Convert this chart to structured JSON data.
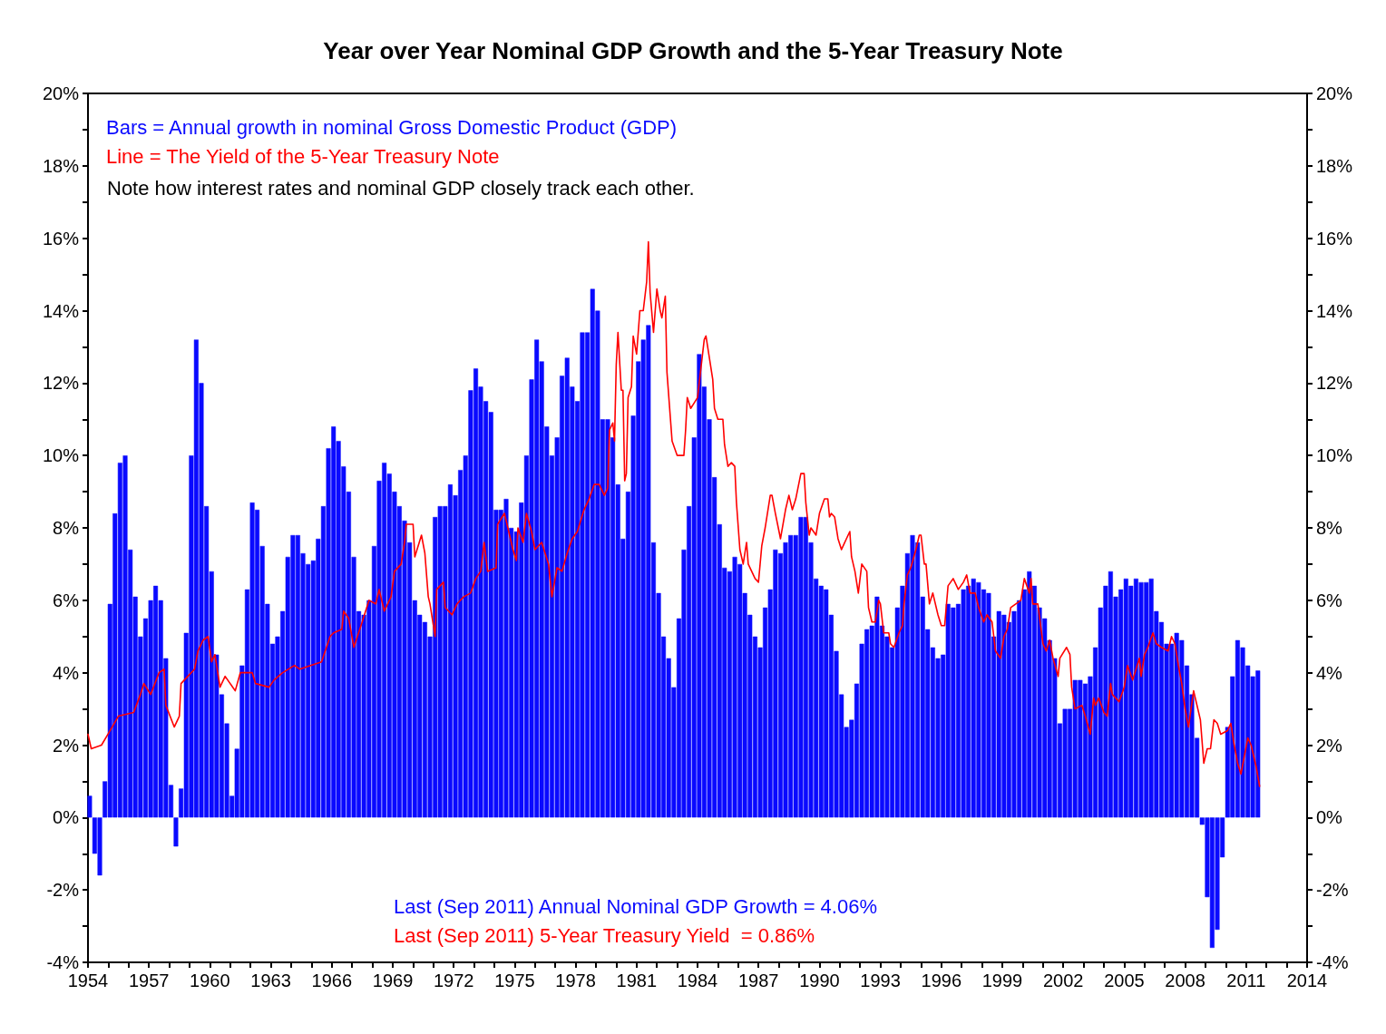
{
  "chart_data": {
    "type": "bar",
    "title": "Year over Year Nominal GDP Growth and the 5-Year Treasury Note",
    "annotations": [
      "Note how interest rates and nominal GDP closely track each other.",
      "Last (Sep 2011) Annual Nominal GDP Growth = 4.06%",
      "Last (Sep 2011) 5-Year Treasury Yield  = 0.86%"
    ],
    "legend": "top left",
    "xlim": [
      "1954",
      "2014"
    ],
    "xticks": [
      {
        "value": "1954",
        "label": "1954"
      },
      {
        "value": "1955",
        "label": null
      },
      {
        "value": "1956",
        "label": null
      },
      {
        "value": "1957",
        "label": "1957"
      },
      {
        "value": "1958",
        "label": null
      },
      {
        "value": "1959",
        "label": null
      },
      {
        "value": "1960",
        "label": "1960"
      },
      {
        "value": "1961",
        "label": null
      },
      {
        "value": "1962",
        "label": null
      },
      {
        "value": "1963",
        "label": "1963"
      },
      {
        "value": "1964",
        "label": null
      },
      {
        "value": "1965",
        "label": null
      },
      {
        "value": "1966",
        "label": "1966"
      },
      {
        "value": "1967",
        "label": null
      },
      {
        "value": "1968",
        "label": null
      },
      {
        "value": "1969",
        "label": "1969"
      },
      {
        "value": "1970",
        "label": null
      },
      {
        "value": "1971",
        "label": null
      },
      {
        "value": "1972",
        "label": "1972"
      },
      {
        "value": "1973",
        "label": null
      },
      {
        "value": "1974",
        "label": null
      },
      {
        "value": "1975",
        "label": "1975"
      },
      {
        "value": "1976",
        "label": null
      },
      {
        "value": "1977",
        "label": null
      },
      {
        "value": "1978",
        "label": "1978"
      },
      {
        "value": "1979",
        "label": null
      },
      {
        "value": "1980",
        "label": null
      },
      {
        "value": "1981",
        "label": "1981"
      },
      {
        "value": "1982",
        "label": null
      },
      {
        "value": "1983",
        "label": null
      },
      {
        "value": "1984",
        "label": "1984"
      },
      {
        "value": "1985",
        "label": null
      },
      {
        "value": "1986",
        "label": null
      },
      {
        "value": "1987",
        "label": "1987"
      },
      {
        "value": "1988",
        "label": null
      },
      {
        "value": "1989",
        "label": null
      },
      {
        "value": "1990",
        "label": "1990"
      },
      {
        "value": "1991",
        "label": null
      },
      {
        "value": "1992",
        "label": null
      },
      {
        "value": "1993",
        "label": "1993"
      },
      {
        "value": "1994",
        "label": null
      },
      {
        "value": "1995",
        "label": null
      },
      {
        "value": "1996",
        "label": "1996"
      },
      {
        "value": "1997",
        "label": null
      },
      {
        "value": "1998",
        "label": null
      },
      {
        "value": "1999",
        "label": "1999"
      },
      {
        "value": "2000",
        "label": null
      },
      {
        "value": "2001",
        "label": null
      },
      {
        "value": "2002",
        "label": "2002"
      },
      {
        "value": "2003",
        "label": null
      },
      {
        "value": "2004",
        "label": null
      },
      {
        "value": "2005",
        "label": "2005"
      },
      {
        "value": "2006",
        "label": null
      },
      {
        "value": "2007",
        "label": null
      },
      {
        "value": "2008",
        "label": "2008"
      },
      {
        "value": "2009",
        "label": null
      },
      {
        "value": "2010",
        "label": null
      },
      {
        "value": "2011",
        "label": "2011"
      },
      {
        "value": "2012",
        "label": null
      },
      {
        "value": "2013",
        "label": null
      },
      {
        "value": "2014",
        "label": "2014"
      }
    ],
    "ylim": [
      -4,
      20
    ],
    "yticks": [
      {
        "value": -4,
        "label": "-4%"
      },
      {
        "value": -3,
        "label": null
      },
      {
        "value": -2,
        "label": "-2%"
      },
      {
        "value": -1,
        "label": null
      },
      {
        "value": 0,
        "label": "0%"
      },
      {
        "value": 1,
        "label": null
      },
      {
        "value": 2,
        "label": "2%"
      },
      {
        "value": 3,
        "label": null
      },
      {
        "value": 4,
        "label": "4%"
      },
      {
        "value": 5,
        "label": null
      },
      {
        "value": 6,
        "label": "6%"
      },
      {
        "value": 7,
        "label": null
      },
      {
        "value": 8,
        "label": "8%"
      },
      {
        "value": 9,
        "label": null
      },
      {
        "value": 10,
        "label": "10%"
      },
      {
        "value": 11,
        "label": null
      },
      {
        "value": 12,
        "label": "12%"
      },
      {
        "value": 13,
        "label": null
      },
      {
        "value": 14,
        "label": "14%"
      },
      {
        "value": 15,
        "label": null
      },
      {
        "value": 16,
        "label": "16%"
      },
      {
        "value": 17,
        "label": null
      },
      {
        "value": 18,
        "label": "18%"
      },
      {
        "value": 19,
        "label": null
      },
      {
        "value": 20,
        "label": "20%"
      }
    ],
    "y2lim": [
      -4,
      20
    ],
    "y2ticks": [
      {
        "value": -4,
        "label": "-4%"
      },
      {
        "value": -3,
        "label": null
      },
      {
        "value": -2,
        "label": "-2%"
      },
      {
        "value": -1,
        "label": null
      },
      {
        "value": 0,
        "label": "0%"
      },
      {
        "value": 1,
        "label": null
      },
      {
        "value": 2,
        "label": "2%"
      },
      {
        "value": 3,
        "label": null
      },
      {
        "value": 4,
        "label": "4%"
      },
      {
        "value": 5,
        "label": null
      },
      {
        "value": 6,
        "label": "6%"
      },
      {
        "value": 7,
        "label": null
      },
      {
        "value": 8,
        "label": "8%"
      },
      {
        "value": 9,
        "label": null
      },
      {
        "value": 10,
        "label": "10%"
      },
      {
        "value": 11,
        "label": null
      },
      {
        "value": 12,
        "label": "12%"
      },
      {
        "value": 13,
        "label": null
      },
      {
        "value": 14,
        "label": "14%"
      },
      {
        "value": 15,
        "label": null
      },
      {
        "value": 16,
        "label": "16%"
      },
      {
        "value": 17,
        "label": null
      },
      {
        "value": 18,
        "label": "18%"
      },
      {
        "value": 19,
        "label": null
      },
      {
        "value": 20,
        "label": "20%"
      }
    ],
    "series": [
      {
        "name": "Bars = Annual growth in nominal Gross Domestic Product (GDP)",
        "color": "#0a0aff",
        "x": [
          "1954-02",
          "1954-05",
          "1954-08",
          "1954-11",
          "1955-02",
          "1955-05",
          "1955-08",
          "1955-11",
          "1956-02",
          "1956-05",
          "1956-08",
          "1956-11",
          "1957-02",
          "1957-05",
          "1957-08",
          "1957-11",
          "1958-02",
          "1958-05",
          "1958-08",
          "1958-11",
          "1959-02",
          "1959-05",
          "1959-08",
          "1959-11",
          "1960-02",
          "1960-05",
          "1960-08",
          "1960-11",
          "1961-02",
          "1961-05",
          "1961-08",
          "1961-11",
          "1962-02",
          "1962-05",
          "1962-08",
          "1962-11",
          "1963-02",
          "1963-05",
          "1963-08",
          "1963-11",
          "1964-02",
          "1964-05",
          "1964-08",
          "1964-11",
          "1965-02",
          "1965-05",
          "1965-08",
          "1965-11",
          "1966-02",
          "1966-05",
          "1966-08",
          "1966-11",
          "1967-02",
          "1967-05",
          "1967-08",
          "1967-11",
          "1968-02",
          "1968-05",
          "1968-08",
          "1968-11",
          "1969-02",
          "1969-05",
          "1969-08",
          "1969-11",
          "1970-02",
          "1970-05",
          "1970-08",
          "1970-11",
          "1971-02",
          "1971-05",
          "1971-08",
          "1971-11",
          "1972-02",
          "1972-05",
          "1972-08",
          "1972-11",
          "1973-02",
          "1973-05",
          "1973-08",
          "1973-11",
          "1974-02",
          "1974-05",
          "1974-08",
          "1974-11",
          "1975-02",
          "1975-05",
          "1975-08",
          "1975-11",
          "1976-02",
          "1976-05",
          "1976-08",
          "1976-11",
          "1977-02",
          "1977-05",
          "1977-08",
          "1977-11",
          "1978-02",
          "1978-05",
          "1978-08",
          "1978-11",
          "1979-02",
          "1979-05",
          "1979-08",
          "1979-11",
          "1980-02",
          "1980-05",
          "1980-08",
          "1980-11",
          "1981-02",
          "1981-05",
          "1981-08",
          "1981-11",
          "1982-02",
          "1982-05",
          "1982-08",
          "1982-11",
          "1983-02",
          "1983-05",
          "1983-08",
          "1983-11",
          "1984-02",
          "1984-05",
          "1984-08",
          "1984-11",
          "1985-02",
          "1985-05",
          "1985-08",
          "1985-11",
          "1986-02",
          "1986-05",
          "1986-08",
          "1986-11",
          "1987-02",
          "1987-05",
          "1987-08",
          "1987-11",
          "1988-02",
          "1988-05",
          "1988-08",
          "1988-11",
          "1989-02",
          "1989-05",
          "1989-08",
          "1989-11",
          "1990-02",
          "1990-05",
          "1990-08",
          "1990-11",
          "1991-02",
          "1991-05",
          "1991-08",
          "1991-11",
          "1992-02",
          "1992-05",
          "1992-08",
          "1992-11",
          "1993-02",
          "1993-05",
          "1993-08",
          "1993-11",
          "1994-02",
          "1994-05",
          "1994-08",
          "1994-11",
          "1995-02",
          "1995-05",
          "1995-08",
          "1995-11",
          "1996-02",
          "1996-05",
          "1996-08",
          "1996-11",
          "1997-02",
          "1997-05",
          "1997-08",
          "1997-11",
          "1998-02",
          "1998-05",
          "1998-08",
          "1998-11",
          "1999-02",
          "1999-05",
          "1999-08",
          "1999-11",
          "2000-02",
          "2000-05",
          "2000-08",
          "2000-11",
          "2001-02",
          "2001-05",
          "2001-08",
          "2001-11",
          "2002-02",
          "2002-05",
          "2002-08",
          "2002-11",
          "2003-02",
          "2003-05",
          "2003-08",
          "2003-11",
          "2004-02",
          "2004-05",
          "2004-08",
          "2004-11",
          "2005-02",
          "2005-05",
          "2005-08",
          "2005-11",
          "2006-02",
          "2006-05",
          "2006-08",
          "2006-11",
          "2007-02",
          "2007-05",
          "2007-08",
          "2007-11",
          "2008-02",
          "2008-05",
          "2008-08",
          "2008-11",
          "2009-02",
          "2009-05",
          "2009-08",
          "2009-11",
          "2010-02",
          "2010-05",
          "2010-08",
          "2010-11",
          "2011-02",
          "2011-05",
          "2011-08"
        ],
        "values": [
          0.6,
          -1.0,
          -1.6,
          1.0,
          5.9,
          8.4,
          9.8,
          10.0,
          7.4,
          6.1,
          5.0,
          5.5,
          6.0,
          6.4,
          6.0,
          4.4,
          0.9,
          -0.8,
          0.8,
          5.1,
          10.0,
          13.2,
          12.0,
          8.6,
          6.8,
          4.5,
          3.4,
          2.6,
          0.6,
          1.9,
          4.2,
          6.3,
          8.7,
          8.5,
          7.5,
          5.9,
          4.8,
          5.0,
          5.7,
          7.2,
          7.8,
          7.8,
          7.3,
          7.0,
          7.1,
          7.7,
          8.6,
          10.2,
          10.8,
          10.4,
          9.7,
          9.0,
          7.2,
          5.7,
          5.6,
          6.0,
          7.5,
          9.3,
          9.8,
          9.5,
          9.0,
          8.6,
          8.2,
          7.6,
          6.0,
          5.6,
          5.4,
          5.0,
          8.3,
          8.6,
          8.6,
          9.2,
          8.9,
          9.6,
          10.0,
          11.8,
          12.4,
          11.9,
          11.5,
          11.2,
          8.5,
          8.5,
          8.8,
          8.0,
          7.9,
          8.7,
          10.0,
          12.1,
          13.2,
          12.6,
          10.8,
          10.0,
          10.5,
          12.2,
          12.7,
          11.9,
          11.5,
          13.4,
          13.4,
          14.6,
          14.0,
          11.0,
          11.0,
          10.5,
          9.2,
          7.7,
          9.0,
          11.1,
          12.6,
          13.2,
          13.6,
          7.6,
          6.2,
          5.0,
          4.4,
          3.6,
          5.5,
          7.4,
          8.6,
          10.5,
          12.8,
          11.9,
          11.0,
          9.4,
          8.1,
          6.9,
          6.8,
          7.2,
          7.0,
          6.2,
          5.6,
          5.0,
          4.7,
          5.8,
          6.3,
          7.4,
          7.3,
          7.6,
          7.8,
          7.8,
          8.3,
          8.3,
          7.6,
          6.6,
          6.4,
          6.3,
          5.6,
          4.6,
          3.4,
          2.5,
          2.7,
          3.7,
          4.8,
          5.2,
          5.3,
          6.1,
          5.3,
          5.0,
          4.7,
          5.8,
          6.4,
          7.3,
          7.8,
          7.6,
          6.1,
          5.2,
          4.7,
          4.4,
          4.5,
          5.9,
          5.8,
          5.9,
          6.3,
          6.4,
          6.6,
          6.5,
          6.3,
          6.2,
          5.0,
          5.7,
          5.6,
          5.4,
          5.7,
          6.0,
          6.3,
          6.8,
          6.4,
          5.8,
          5.5,
          4.9,
          4.4,
          2.6,
          3.0,
          3.0,
          3.8,
          3.8,
          3.7,
          3.9,
          4.7,
          5.8,
          6.4,
          6.8,
          6.1,
          6.3,
          6.6,
          6.4,
          6.6,
          6.5,
          6.5,
          6.6,
          5.7,
          5.4,
          4.8,
          4.8,
          5.1,
          4.9,
          4.2,
          3.4,
          2.2,
          -0.2,
          -2.2,
          -3.6,
          -3.1,
          -1.1,
          2.5,
          3.9,
          4.9,
          4.7,
          4.2,
          3.9,
          4.06
        ]
      },
      {
        "type": "line",
        "name": "Line = The Yield of the 5-Year Treasury Note",
        "color": "#ff0000",
        "x": [
          "1954-01",
          "1954-03",
          "1954-09",
          "1955-02",
          "1955-07",
          "1956-04",
          "1956-08",
          "1956-10",
          "1957-02",
          "1957-07",
          "1957-10",
          "1957-11",
          "1958-04",
          "1958-07",
          "1958-08",
          "1958-12",
          "1959-04",
          "1959-06",
          "1959-09",
          "1959-12",
          "1960-02",
          "1960-04",
          "1960-07",
          "1960-10",
          "1961-04",
          "1961-07",
          "1962-02",
          "1962-04",
          "1962-12",
          "1963-03",
          "1963-08",
          "1964-03",
          "1964-06",
          "1965-07",
          "1965-12",
          "1966-02",
          "1966-07",
          "1966-08",
          "1966-11",
          "1967-02",
          "1967-07",
          "1967-11",
          "1968-03",
          "1968-05",
          "1968-08",
          "1968-12",
          "1969-02",
          "1969-06",
          "1969-08",
          "1969-09",
          "1970-01",
          "1970-02",
          "1970-06",
          "1970-08",
          "1970-10",
          "1970-11",
          "1971-02",
          "1971-03",
          "1971-07",
          "1971-08",
          "1971-12",
          "1972-03",
          "1972-07",
          "1972-11",
          "1973-02",
          "1973-05",
          "1973-07",
          "1973-09",
          "1974-02",
          "1974-03",
          "1974-07",
          "1974-09",
          "1974-12",
          "1975-02",
          "1975-03",
          "1975-06",
          "1975-08",
          "1975-11",
          "1976-01",
          "1976-05",
          "1976-09",
          "1976-11",
          "1977-02",
          "1977-05",
          "1977-08",
          "1977-11",
          "1978-02",
          "1978-06",
          "1978-09",
          "1978-12",
          "1979-03",
          "1979-06",
          "1979-08",
          "1979-09",
          "1979-11",
          "1979-12",
          "1980-01",
          "1980-02",
          "1980-04",
          "1980-05",
          "1980-06",
          "1980-07",
          "1980-08",
          "1980-10",
          "1980-11",
          "1981-01",
          "1981-03",
          "1981-05",
          "1981-07",
          "1981-08",
          "1981-09",
          "1981-11",
          "1982-01",
          "1982-03",
          "1982-04",
          "1982-06",
          "1982-07",
          "1982-10",
          "1983-01",
          "1983-05",
          "1983-06",
          "1983-07",
          "1983-09",
          "1984-01",
          "1984-05",
          "1984-06",
          "1984-08",
          "1984-10",
          "1984-11",
          "1985-01",
          "1985-04",
          "1985-05",
          "1985-07",
          "1985-09",
          "1985-11",
          "1985-12",
          "1986-02",
          "1986-04",
          "1986-06",
          "1986-07",
          "1986-11",
          "1987-01",
          "1987-03",
          "1987-05",
          "1987-08",
          "1987-09",
          "1987-11",
          "1988-02",
          "1988-05",
          "1988-07",
          "1988-09",
          "1988-11",
          "1989-02",
          "1989-04",
          "1989-05",
          "1989-07",
          "1989-08",
          "1989-11",
          "1990-01",
          "1990-04",
          "1990-06",
          "1990-07",
          "1990-08",
          "1990-10",
          "1990-12",
          "1991-02",
          "1991-05",
          "1991-07",
          "1991-08",
          "1991-10",
          "1991-12",
          "1992-02",
          "1992-05",
          "1992-06",
          "1992-08",
          "1992-10",
          "1992-12",
          "1993-01",
          "1993-03",
          "1993-06",
          "1993-07",
          "1993-09",
          "1993-12",
          "1994-02",
          "1994-03",
          "1994-05",
          "1994-07",
          "1994-10",
          "1994-12",
          "1995-01",
          "1995-03",
          "1995-04",
          "1995-06",
          "1995-08",
          "1995-11",
          "1996-01",
          "1996-03",
          "1996-05",
          "1996-08",
          "1996-11",
          "1997-02",
          "1997-04",
          "1997-06",
          "1997-09",
          "1997-11",
          "1998-02",
          "1998-04",
          "1998-07",
          "1998-09",
          "1998-12",
          "1999-02",
          "1999-04",
          "1999-06",
          "1999-12",
          "2000-02",
          "2000-05",
          "2000-06",
          "2000-07",
          "2000-10",
          "2001-01",
          "2001-03",
          "2001-05",
          "2001-07",
          "2001-10",
          "2001-11",
          "2002-03",
          "2002-05",
          "2002-06",
          "2002-08",
          "2002-12",
          "2003-02",
          "2003-05",
          "2003-07",
          "2003-08",
          "2003-10",
          "2004-01",
          "2004-03",
          "2004-05",
          "2004-06",
          "2004-10",
          "2005-01",
          "2005-03",
          "2005-06",
          "2005-08",
          "2005-10",
          "2005-11",
          "2006-01",
          "2006-03",
          "2006-06",
          "2006-08",
          "2006-11",
          "2007-03",
          "2007-05",
          "2007-07",
          "2007-09",
          "2007-11",
          "2008-01",
          "2008-03",
          "2008-06",
          "2008-08",
          "2008-10",
          "2008-12",
          "2009-02",
          "2009-04",
          "2009-06",
          "2009-08",
          "2009-10",
          "2010-02",
          "2010-04",
          "2010-06",
          "2010-08",
          "2010-10",
          "2010-12",
          "2011-02",
          "2011-04",
          "2011-06",
          "2011-07",
          "2011-09"
        ],
        "values": [
          2.3,
          1.9,
          2.0,
          2.4,
          2.8,
          2.9,
          3.4,
          3.7,
          3.4,
          4.0,
          4.1,
          3.1,
          2.5,
          2.8,
          3.7,
          3.9,
          4.1,
          4.6,
          4.9,
          5.0,
          4.3,
          4.5,
          3.6,
          3.9,
          3.5,
          4.0,
          4.0,
          3.7,
          3.6,
          3.8,
          4.0,
          4.2,
          4.1,
          4.3,
          5.0,
          5.1,
          5.2,
          5.7,
          5.5,
          4.7,
          5.4,
          6.0,
          5.9,
          6.3,
          5.7,
          6.1,
          6.8,
          7.0,
          7.6,
          8.1,
          8.1,
          7.2,
          7.8,
          7.3,
          6.1,
          5.9,
          5.0,
          6.3,
          6.5,
          5.8,
          5.6,
          5.9,
          6.1,
          6.2,
          6.6,
          6.8,
          7.6,
          6.8,
          6.9,
          8.1,
          8.4,
          8.0,
          7.4,
          7.1,
          8.0,
          7.6,
          8.4,
          7.9,
          7.4,
          7.6,
          7.0,
          6.1,
          6.9,
          6.8,
          7.3,
          7.7,
          7.9,
          8.5,
          8.8,
          9.2,
          9.2,
          8.9,
          9.1,
          10.7,
          10.9,
          10.4,
          12.5,
          13.4,
          11.8,
          11.8,
          9.3,
          9.5,
          11.6,
          11.9,
          13.3,
          12.8,
          14.0,
          14.0,
          14.8,
          15.9,
          14.5,
          13.4,
          14.6,
          14.0,
          13.8,
          14.4,
          12.3,
          10.4,
          10.0,
          10.0,
          10.7,
          11.6,
          11.3,
          11.6,
          13.2,
          13.3,
          12.7,
          12.1,
          11.3,
          11.0,
          11.0,
          10.3,
          9.7,
          9.8,
          9.7,
          8.7,
          7.4,
          7.0,
          7.6,
          7.0,
          6.6,
          6.5,
          7.5,
          8.0,
          8.9,
          8.9,
          8.4,
          7.7,
          8.5,
          8.9,
          8.5,
          8.8,
          9.5,
          9.5,
          8.7,
          7.8,
          8.0,
          7.8,
          8.4,
          8.8,
          8.8,
          8.3,
          8.4,
          8.3,
          7.7,
          7.4,
          7.7,
          7.9,
          7.2,
          6.8,
          6.2,
          7.0,
          6.8,
          5.8,
          5.4,
          5.4,
          6.0,
          5.9,
          5.1,
          5.1,
          4.8,
          4.7,
          5.1,
          5.3,
          5.9,
          6.7,
          6.9,
          7.4,
          7.8,
          7.8,
          7.0,
          7.0,
          5.9,
          6.2,
          5.6,
          5.3,
          5.3,
          6.4,
          6.6,
          6.3,
          6.5,
          6.7,
          6.2,
          6.2,
          5.8,
          5.4,
          5.6,
          5.4,
          4.6,
          4.4,
          5.0,
          5.2,
          5.8,
          6.0,
          6.6,
          6.2,
          6.6,
          5.9,
          5.9,
          4.8,
          4.6,
          4.9,
          4.4,
          3.9,
          4.4,
          4.7,
          4.5,
          3.6,
          3.0,
          3.1,
          2.8,
          2.3,
          3.3,
          3.1,
          3.3,
          2.9,
          2.8,
          3.7,
          3.4,
          3.2,
          3.6,
          4.2,
          3.8,
          4.1,
          4.4,
          3.9,
          4.5,
          4.7,
          5.1,
          4.8,
          4.7,
          4.6,
          5.0,
          4.8,
          4.2,
          3.7,
          3.0,
          2.5,
          3.5,
          3.1,
          2.7,
          1.5,
          1.9,
          1.9,
          2.7,
          2.6,
          2.3,
          2.4,
          2.6,
          2.0,
          1.5,
          1.2,
          1.7,
          2.2,
          2.0,
          1.6,
          1.4,
          0.86
        ]
      }
    ]
  }
}
